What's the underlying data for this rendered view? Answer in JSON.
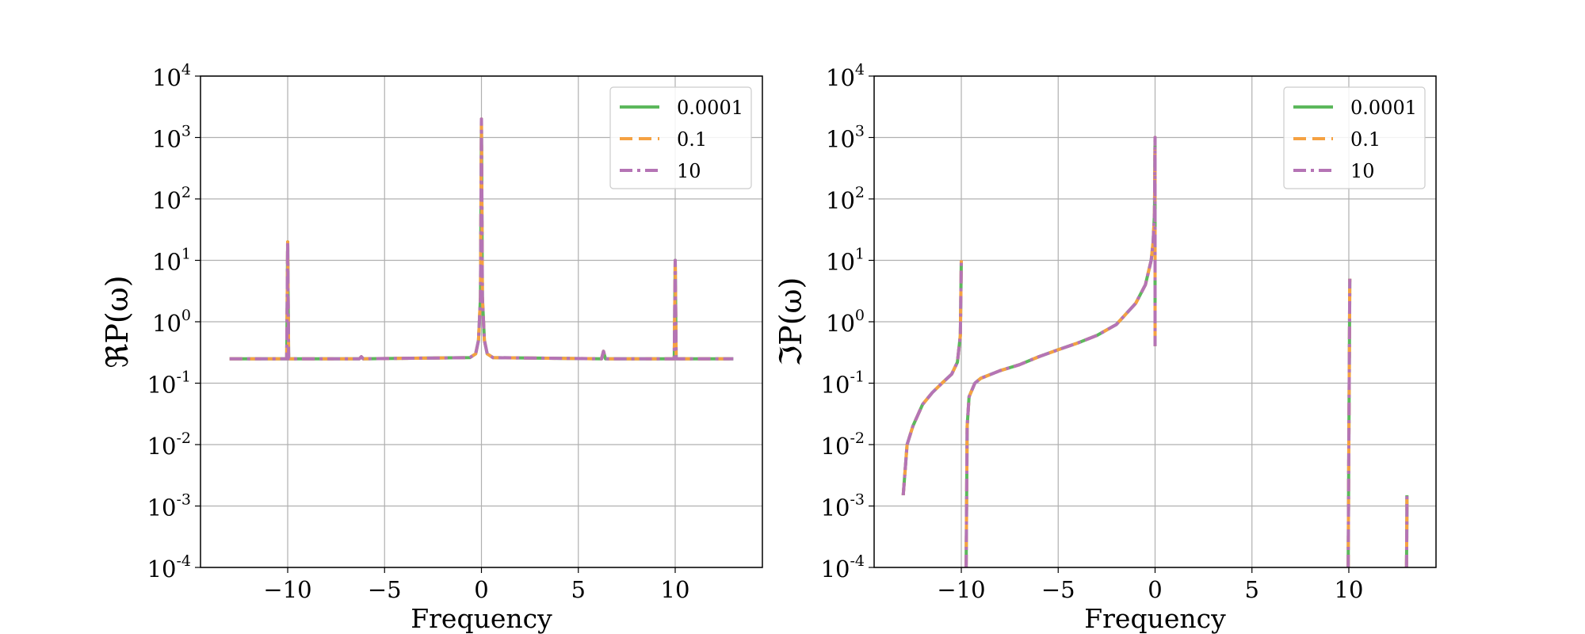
{
  "chart_data": [
    {
      "type": "line",
      "xlabel": "Frequency",
      "ylabel": "ℜP(ω)",
      "xlim": [
        -14.5,
        14.5
      ],
      "xticks": [
        -10,
        -5,
        0,
        5,
        10
      ],
      "xtick_labels": [
        "−10",
        "−5",
        "0",
        "5",
        "10"
      ],
      "yscale": "log",
      "ylim": [
        0.0001,
        10000
      ],
      "ytick_labels": [
        {
          "base": "10",
          "exp": "4"
        },
        {
          "base": "10",
          "exp": "3"
        },
        {
          "base": "10",
          "exp": "2"
        },
        {
          "base": "10",
          "exp": "1"
        },
        {
          "base": "10",
          "exp": "0"
        },
        {
          "base": "10",
          "exp": "-1"
        },
        {
          "base": "10",
          "exp": "-2"
        },
        {
          "base": "10",
          "exp": "-3"
        },
        {
          "base": "10",
          "exp": "-4"
        }
      ],
      "grid": true,
      "legend": "top-right",
      "series": [
        {
          "name": "0.0001",
          "color": "#5cb85c",
          "style": "solid"
        },
        {
          "name": "0.1",
          "color": "#f5a142",
          "style": "dashed"
        },
        {
          "name": "10",
          "color": "#b574b5",
          "style": "dashdot"
        }
      ],
      "x": [
        -13,
        -10.05,
        -10.0,
        -9.95,
        -6.3,
        -6.2,
        -6.1,
        -0.6,
        -0.3,
        -0.15,
        -0.05,
        0.0,
        0.05,
        0.15,
        0.3,
        0.6,
        6.2,
        6.3,
        6.4,
        9.95,
        10.0,
        10.05,
        13
      ],
      "y": [
        0.25,
        0.25,
        20,
        0.25,
        0.25,
        0.27,
        0.25,
        0.26,
        0.3,
        0.5,
        2.5,
        2000,
        2.5,
        0.5,
        0.3,
        0.26,
        0.25,
        0.33,
        0.25,
        0.25,
        10,
        0.25,
        0.25
      ]
    },
    {
      "type": "line",
      "xlabel": "Frequency",
      "ylabel": "ℑP(ω)",
      "xlim": [
        -14.5,
        14.5
      ],
      "xticks": [
        -10,
        -5,
        0,
        5,
        10
      ],
      "xtick_labels": [
        "−10",
        "−5",
        "0",
        "5",
        "10"
      ],
      "yscale": "log",
      "ylim": [
        0.0001,
        10000
      ],
      "ytick_labels": [
        {
          "base": "10",
          "exp": "4"
        },
        {
          "base": "10",
          "exp": "3"
        },
        {
          "base": "10",
          "exp": "2"
        },
        {
          "base": "10",
          "exp": "1"
        },
        {
          "base": "10",
          "exp": "0"
        },
        {
          "base": "10",
          "exp": "-1"
        },
        {
          "base": "10",
          "exp": "-2"
        },
        {
          "base": "10",
          "exp": "-3"
        },
        {
          "base": "10",
          "exp": "-4"
        }
      ],
      "grid": true,
      "legend": "top-right",
      "series": [
        {
          "name": "0.0001",
          "color": "#5cb85c",
          "style": "solid"
        },
        {
          "name": "0.1",
          "color": "#f5a142",
          "style": "dashed"
        },
        {
          "name": "10",
          "color": "#b574b5",
          "style": "dashdot"
        }
      ],
      "segments": [
        {
          "x": [
            -13.0,
            -12.8,
            -12.5,
            -12.0,
            -11.5,
            -11.0,
            -10.5,
            -10.2,
            -10.05,
            -10.0
          ],
          "y": [
            0.0015,
            0.01,
            0.02,
            0.045,
            0.07,
            0.1,
            0.14,
            0.22,
            0.6,
            10
          ]
        },
        {
          "x": [
            -9.75,
            -9.7,
            -9.6,
            -9.3,
            -9.0,
            -8.0,
            -7.0,
            -6.0,
            -5.0,
            -4.0,
            -3.0,
            -2.0,
            -1.0,
            -0.5,
            -0.2,
            -0.1,
            -0.03,
            0.0,
            0.0,
            0.0
          ],
          "y": [
            0.0001,
            0.02,
            0.06,
            0.1,
            0.12,
            0.16,
            0.2,
            0.27,
            0.35,
            0.45,
            0.6,
            0.9,
            2.0,
            4.0,
            10,
            20,
            60,
            1000,
            0.4,
            0.4
          ]
        },
        {
          "x": [
            9.97,
            10.0,
            10.03,
            10.05
          ],
          "y": [
            0.0001,
            0.01,
            0.3,
            5.0
          ]
        },
        {
          "x": [
            12.98,
            13.0,
            13.0
          ],
          "y": [
            0.0001,
            0.0008,
            0.0015
          ]
        }
      ]
    }
  ]
}
